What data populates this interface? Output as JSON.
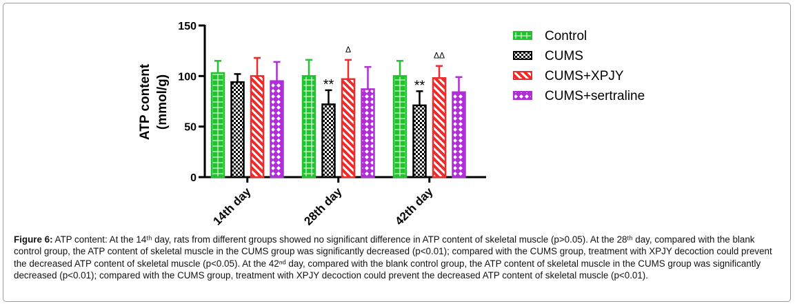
{
  "chart_data": {
    "type": "bar",
    "ylabel_line1": "ATP content",
    "ylabel_line2": "(mmol/g)",
    "ylim": [
      0,
      150
    ],
    "yticks": [
      "0",
      "50",
      "100",
      "150"
    ],
    "categories": [
      "14th day",
      "28th day",
      "42th day"
    ],
    "series": [
      {
        "name": "Control",
        "color": "#22c22e",
        "pattern": "grid",
        "values": [
          103,
          100,
          100
        ],
        "errors": [
          12,
          16,
          15
        ]
      },
      {
        "name": "CUMS",
        "color": "#000000",
        "pattern": "checker",
        "values": [
          94,
          72,
          71
        ],
        "errors": [
          8,
          14,
          14
        ]
      },
      {
        "name": "CUMS+XPJY",
        "color": "#ee2b2b",
        "pattern": "diagonal",
        "values": [
          100,
          97,
          98
        ],
        "errors": [
          18,
          19,
          12
        ]
      },
      {
        "name": "CUMS+sertraline",
        "color": "#b02ed6",
        "pattern": "diamond",
        "values": [
          95,
          87,
          84
        ],
        "errors": [
          19,
          22,
          15
        ]
      }
    ],
    "annotations": [
      {
        "category": 1,
        "series": 1,
        "text": "**"
      },
      {
        "category": 1,
        "series": 2,
        "text": "Δ"
      },
      {
        "category": 2,
        "series": 1,
        "text": "**"
      },
      {
        "category": 2,
        "series": 2,
        "text": "ΔΔ"
      }
    ],
    "legend_position": "right"
  },
  "caption": {
    "label": "Figure 6:",
    "text": " ATP content: At the 14ᵗʰ day, rats from different groups showed no significant difference in ATP content of skeletal muscle (p>0.05). At the 28ᵗʰ day, compared with the blank control group, the ATP content of skeletal muscle in the CUMS group was significantly decreased (p<0.01); compared with the CUMS group, treatment with XPJY decoction could prevent the decreased ATP content of skeletal muscle (p<0.05). At the 42ⁿᵈ day, compared with the blank control group, the ATP content of skeletal muscle in the CUMS group was significantly decreased (p<0.01); compared with the CUMS group, treatment with XPJY decoction could prevent the decreased ATP content of skeletal muscle (p<0.01)."
  }
}
